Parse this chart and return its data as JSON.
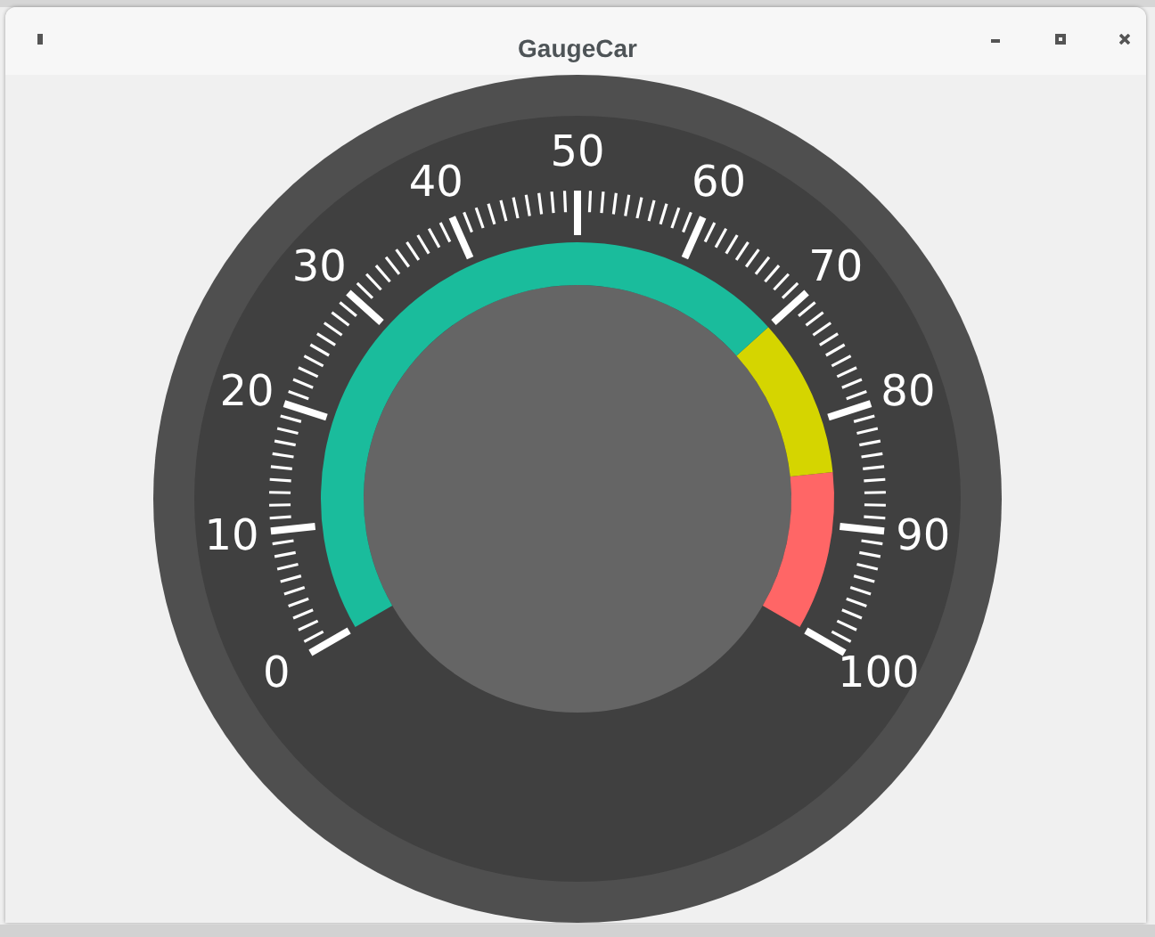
{
  "chart_data": {
    "type": "donut",
    "title": "GaugeCar",
    "categories": [
      null,
      null,
      null
    ],
    "values": [
      70,
      15,
      15
    ],
    "colors": [
      "#1abc9c",
      "#d5d500",
      "#ff6666"
    ],
    "annotations": [
      "0",
      "10",
      "20",
      "30",
      "40",
      "50",
      "60",
      "70",
      "80",
      "90",
      "100"
    ]
  }
}
